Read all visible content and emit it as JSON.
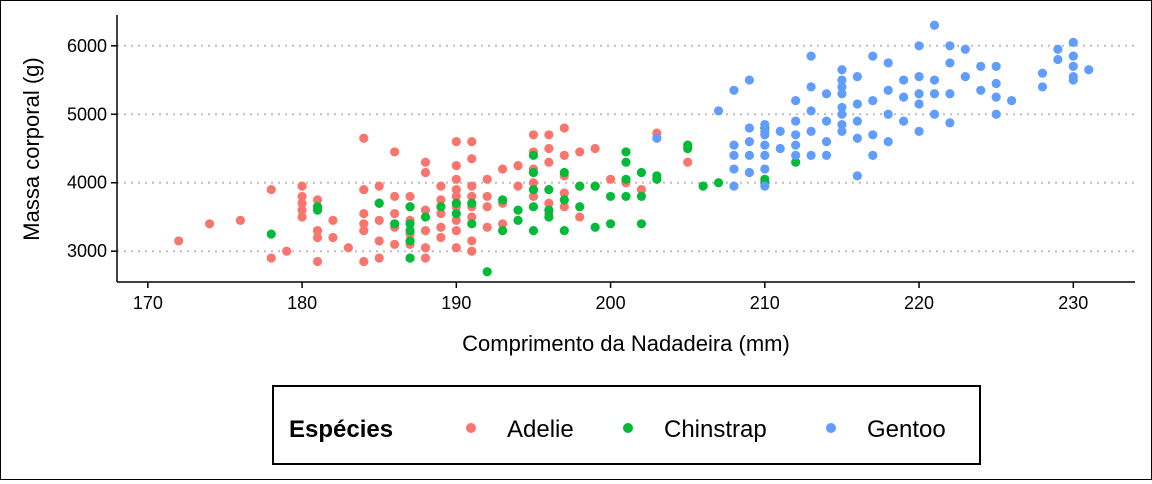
{
  "chart_data": {
    "type": "scatter",
    "xlabel": "Comprimento da Nadadeira (mm)",
    "ylabel": "Massa corporal (g)",
    "xlim": [
      168,
      234
    ],
    "ylim": [
      2550,
      6450
    ],
    "xticks": [
      170,
      180,
      190,
      200,
      210,
      220,
      230
    ],
    "yticks": [
      3000,
      4000,
      5000,
      6000
    ],
    "grid": "horizontal-dotted",
    "legend": {
      "title": "Espécies",
      "position": "bottom"
    },
    "series": [
      {
        "name": "Adelie",
        "color": "#F8766D",
        "points": [
          [
            172,
            3150
          ],
          [
            174,
            3400
          ],
          [
            176,
            3450
          ],
          [
            178,
            3900
          ],
          [
            178,
            2900
          ],
          [
            179,
            3000
          ],
          [
            180,
            3950
          ],
          [
            180,
            3800
          ],
          [
            180,
            3700
          ],
          [
            180,
            3600
          ],
          [
            180,
            3500
          ],
          [
            181,
            3750
          ],
          [
            181,
            3300
          ],
          [
            181,
            3200
          ],
          [
            181,
            2850
          ],
          [
            182,
            3450
          ],
          [
            182,
            3200
          ],
          [
            183,
            3050
          ],
          [
            184,
            4650
          ],
          [
            184,
            3900
          ],
          [
            184,
            3550
          ],
          [
            184,
            3400
          ],
          [
            184,
            3300
          ],
          [
            184,
            2850
          ],
          [
            185,
            3950
          ],
          [
            185,
            3700
          ],
          [
            185,
            3450
          ],
          [
            185,
            3150
          ],
          [
            185,
            2900
          ],
          [
            186,
            4450
          ],
          [
            186,
            3800
          ],
          [
            186,
            3550
          ],
          [
            186,
            3350
          ],
          [
            186,
            3100
          ],
          [
            187,
            3800
          ],
          [
            187,
            3650
          ],
          [
            187,
            3450
          ],
          [
            187,
            3250
          ],
          [
            187,
            3100
          ],
          [
            187,
            2900
          ],
          [
            188,
            4300
          ],
          [
            188,
            4150
          ],
          [
            188,
            3600
          ],
          [
            188,
            3300
          ],
          [
            188,
            3050
          ],
          [
            188,
            2900
          ],
          [
            189,
            3950
          ],
          [
            189,
            3750
          ],
          [
            189,
            3550
          ],
          [
            189,
            3350
          ],
          [
            189,
            3200
          ],
          [
            190,
            4600
          ],
          [
            190,
            4250
          ],
          [
            190,
            4050
          ],
          [
            190,
            3900
          ],
          [
            190,
            3800
          ],
          [
            190,
            3650
          ],
          [
            190,
            3450
          ],
          [
            190,
            3300
          ],
          [
            190,
            3050
          ],
          [
            191,
            4600
          ],
          [
            191,
            4350
          ],
          [
            191,
            3950
          ],
          [
            191,
            3800
          ],
          [
            191,
            3650
          ],
          [
            191,
            3500
          ],
          [
            191,
            3150
          ],
          [
            191,
            3000
          ],
          [
            192,
            4050
          ],
          [
            192,
            3800
          ],
          [
            192,
            3650
          ],
          [
            192,
            3350
          ],
          [
            193,
            4200
          ],
          [
            193,
            3700
          ],
          [
            193,
            3400
          ],
          [
            194,
            4250
          ],
          [
            194,
            3950
          ],
          [
            195,
            4700
          ],
          [
            195,
            4450
          ],
          [
            195,
            4200
          ],
          [
            195,
            4000
          ],
          [
            195,
            3800
          ],
          [
            196,
            4700
          ],
          [
            196,
            4500
          ],
          [
            196,
            4300
          ],
          [
            196,
            3700
          ],
          [
            196,
            3550
          ],
          [
            197,
            4800
          ],
          [
            197,
            4400
          ],
          [
            197,
            4100
          ],
          [
            197,
            3850
          ],
          [
            197,
            3650
          ],
          [
            198,
            4450
          ],
          [
            198,
            3950
          ],
          [
            198,
            3500
          ],
          [
            199,
            4500
          ],
          [
            199,
            3950
          ],
          [
            200,
            4050
          ],
          [
            201,
            4000
          ],
          [
            202,
            3900
          ],
          [
            203,
            4725
          ],
          [
            205,
            4300
          ]
        ]
      },
      {
        "name": "Chinstrap",
        "color": "#00BA38",
        "points": [
          [
            178,
            3250
          ],
          [
            181,
            3650
          ],
          [
            181,
            3600
          ],
          [
            185,
            3700
          ],
          [
            186,
            3400
          ],
          [
            187,
            3650
          ],
          [
            187,
            3400
          ],
          [
            187,
            3300
          ],
          [
            187,
            3150
          ],
          [
            187,
            2900
          ],
          [
            188,
            3500
          ],
          [
            189,
            3650
          ],
          [
            190,
            3700
          ],
          [
            190,
            3550
          ],
          [
            191,
            3700
          ],
          [
            191,
            3400
          ],
          [
            192,
            2700
          ],
          [
            193,
            3750
          ],
          [
            193,
            3300
          ],
          [
            194,
            3600
          ],
          [
            194,
            3450
          ],
          [
            195,
            4400
          ],
          [
            195,
            4150
          ],
          [
            195,
            3900
          ],
          [
            195,
            3650
          ],
          [
            195,
            3300
          ],
          [
            196,
            3900
          ],
          [
            196,
            3600
          ],
          [
            196,
            3500
          ],
          [
            197,
            4150
          ],
          [
            197,
            3750
          ],
          [
            197,
            3300
          ],
          [
            198,
            3950
          ],
          [
            198,
            3650
          ],
          [
            199,
            3950
          ],
          [
            199,
            3350
          ],
          [
            200,
            3800
          ],
          [
            200,
            3400
          ],
          [
            201,
            4450
          ],
          [
            201,
            4300
          ],
          [
            201,
            4050
          ],
          [
            201,
            3800
          ],
          [
            202,
            4150
          ],
          [
            202,
            3800
          ],
          [
            202,
            3400
          ],
          [
            203,
            4100
          ],
          [
            203,
            4050
          ],
          [
            205,
            4550
          ],
          [
            205,
            4500
          ],
          [
            206,
            3950
          ],
          [
            207,
            4000
          ],
          [
            210,
            4800
          ],
          [
            210,
            4000
          ],
          [
            210,
            4050
          ],
          [
            212,
            4300
          ]
        ]
      },
      {
        "name": "Gentoo",
        "color": "#619CFF",
        "points": [
          [
            203,
            4650
          ],
          [
            207,
            5050
          ],
          [
            208,
            4550
          ],
          [
            208,
            4400
          ],
          [
            208,
            4200
          ],
          [
            208,
            3950
          ],
          [
            208,
            5350
          ],
          [
            209,
            5500
          ],
          [
            209,
            4800
          ],
          [
            209,
            4600
          ],
          [
            209,
            4400
          ],
          [
            209,
            4150
          ],
          [
            210,
            4850
          ],
          [
            210,
            4700
          ],
          [
            210,
            4550
          ],
          [
            210,
            4400
          ],
          [
            210,
            4200
          ],
          [
            210,
            3950
          ],
          [
            210,
            4750
          ],
          [
            211,
            4750
          ],
          [
            211,
            4500
          ],
          [
            212,
            5200
          ],
          [
            212,
            4900
          ],
          [
            212,
            4700
          ],
          [
            212,
            4550
          ],
          [
            212,
            4400
          ],
          [
            213,
            5850
          ],
          [
            213,
            5400
          ],
          [
            213,
            5050
          ],
          [
            213,
            4750
          ],
          [
            213,
            4400
          ],
          [
            214,
            5300
          ],
          [
            214,
            4900
          ],
          [
            214,
            4600
          ],
          [
            214,
            4400
          ],
          [
            215,
            5650
          ],
          [
            215,
            5500
          ],
          [
            215,
            5400
          ],
          [
            215,
            5300
          ],
          [
            215,
            5100
          ],
          [
            215,
            5000
          ],
          [
            215,
            4850
          ],
          [
            215,
            4750
          ],
          [
            216,
            5550
          ],
          [
            216,
            5150
          ],
          [
            216,
            4900
          ],
          [
            216,
            4650
          ],
          [
            216,
            4100
          ],
          [
            217,
            5850
          ],
          [
            217,
            5200
          ],
          [
            217,
            4700
          ],
          [
            217,
            4400
          ],
          [
            218,
            5750
          ],
          [
            218,
            5350
          ],
          [
            218,
            5000
          ],
          [
            218,
            4600
          ],
          [
            219,
            5500
          ],
          [
            219,
            5250
          ],
          [
            219,
            4900
          ],
          [
            220,
            6000
          ],
          [
            220,
            5550
          ],
          [
            220,
            5300
          ],
          [
            220,
            5150
          ],
          [
            220,
            4750
          ],
          [
            221,
            6300
          ],
          [
            221,
            5500
          ],
          [
            221,
            5300
          ],
          [
            221,
            5000
          ],
          [
            222,
            6000
          ],
          [
            222,
            5750
          ],
          [
            222,
            5300
          ],
          [
            222,
            4875
          ],
          [
            223,
            5950
          ],
          [
            223,
            5550
          ],
          [
            224,
            5700
          ],
          [
            224,
            5350
          ],
          [
            225,
            5700
          ],
          [
            225,
            5450
          ],
          [
            225,
            5250
          ],
          [
            225,
            5000
          ],
          [
            226,
            5200
          ],
          [
            228,
            5600
          ],
          [
            228,
            5400
          ],
          [
            229,
            5950
          ],
          [
            229,
            5800
          ],
          [
            230,
            6050
          ],
          [
            230,
            5850
          ],
          [
            230,
            5700
          ],
          [
            230,
            5550
          ],
          [
            230,
            5500
          ],
          [
            231,
            5650
          ]
        ]
      }
    ]
  }
}
